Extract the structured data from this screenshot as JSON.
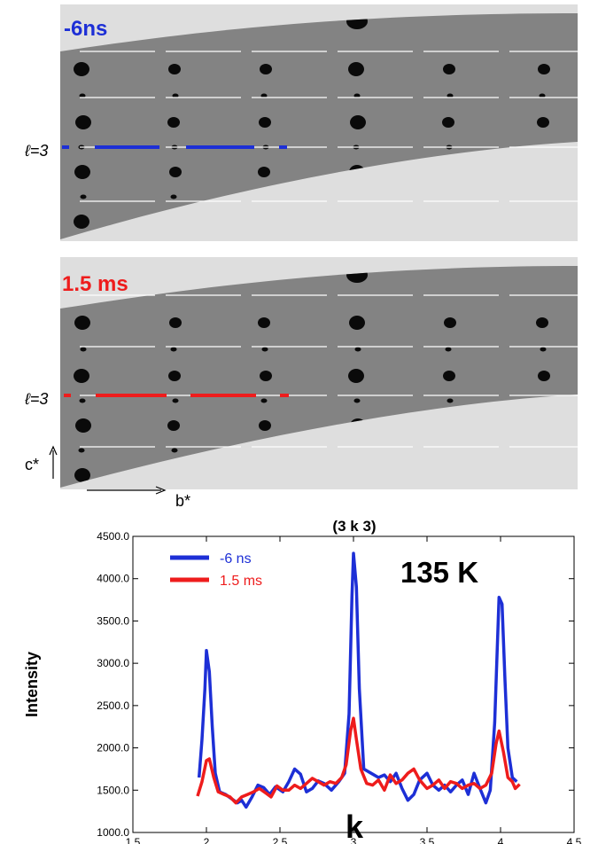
{
  "panels": [
    {
      "time_label": "-6ns",
      "l_label": "ℓ=3",
      "color": "#1d2fd6"
    },
    {
      "time_label": "1.5 ms",
      "l_label": "ℓ=3",
      "color": "#ee1c1c"
    }
  ],
  "axes_labels": {
    "c_star": "c*",
    "b_star": "b*"
  },
  "chart_data": {
    "type": "line",
    "title": "(3 k 3)",
    "annotation": "135 K",
    "xlabel": "k",
    "ylabel": "Intensity",
    "xlim": [
      1.5,
      4.5
    ],
    "ylim": [
      1000.0,
      4500.0
    ],
    "x_ticks": [
      "1.5",
      "2",
      "2.5",
      "3",
      "3.5",
      "4",
      "4.5"
    ],
    "y_ticks": [
      "1000.0",
      "1500.0",
      "2000.0",
      "2500.0",
      "3000.0",
      "3500.0",
      "4000.0",
      "4500.0"
    ],
    "legend_position": "top-left",
    "series": [
      {
        "name": "-6 ns",
        "color": "#1d2fd6",
        "points": [
          [
            1.95,
            1650
          ],
          [
            1.97,
            2100
          ],
          [
            1.99,
            2700
          ],
          [
            2.0,
            3150
          ],
          [
            2.02,
            2900
          ],
          [
            2.04,
            2250
          ],
          [
            2.06,
            1700
          ],
          [
            2.09,
            1480
          ],
          [
            2.13,
            1450
          ],
          [
            2.17,
            1400
          ],
          [
            2.21,
            1350
          ],
          [
            2.24,
            1380
          ],
          [
            2.27,
            1300
          ],
          [
            2.31,
            1420
          ],
          [
            2.35,
            1560
          ],
          [
            2.39,
            1530
          ],
          [
            2.43,
            1450
          ],
          [
            2.47,
            1540
          ],
          [
            2.52,
            1480
          ],
          [
            2.56,
            1600
          ],
          [
            2.6,
            1750
          ],
          [
            2.64,
            1690
          ],
          [
            2.68,
            1480
          ],
          [
            2.72,
            1520
          ],
          [
            2.76,
            1610
          ],
          [
            2.8,
            1580
          ],
          [
            2.85,
            1500
          ],
          [
            2.9,
            1600
          ],
          [
            2.94,
            1700
          ],
          [
            2.97,
            2400
          ],
          [
            2.99,
            3800
          ],
          [
            3.0,
            4300
          ],
          [
            3.02,
            3900
          ],
          [
            3.04,
            2700
          ],
          [
            3.07,
            1750
          ],
          [
            3.12,
            1700
          ],
          [
            3.17,
            1650
          ],
          [
            3.21,
            1680
          ],
          [
            3.25,
            1600
          ],
          [
            3.29,
            1700
          ],
          [
            3.33,
            1520
          ],
          [
            3.37,
            1380
          ],
          [
            3.41,
            1450
          ],
          [
            3.45,
            1620
          ],
          [
            3.5,
            1700
          ],
          [
            3.54,
            1560
          ],
          [
            3.58,
            1500
          ],
          [
            3.62,
            1560
          ],
          [
            3.66,
            1480
          ],
          [
            3.7,
            1560
          ],
          [
            3.74,
            1620
          ],
          [
            3.78,
            1450
          ],
          [
            3.82,
            1700
          ],
          [
            3.86,
            1520
          ],
          [
            3.9,
            1350
          ],
          [
            3.93,
            1500
          ],
          [
            3.96,
            2300
          ],
          [
            3.98,
            3300
          ],
          [
            3.99,
            3780
          ],
          [
            4.01,
            3700
          ],
          [
            4.03,
            2800
          ],
          [
            4.05,
            2000
          ],
          [
            4.08,
            1650
          ],
          [
            4.11,
            1600
          ]
        ]
      },
      {
        "name": "1.5 ms",
        "color": "#ee1c1c",
        "points": [
          [
            1.94,
            1430
          ],
          [
            1.97,
            1600
          ],
          [
            2.0,
            1850
          ],
          [
            2.02,
            1870
          ],
          [
            2.05,
            1650
          ],
          [
            2.08,
            1480
          ],
          [
            2.12,
            1450
          ],
          [
            2.16,
            1420
          ],
          [
            2.2,
            1350
          ],
          [
            2.24,
            1420
          ],
          [
            2.28,
            1450
          ],
          [
            2.32,
            1480
          ],
          [
            2.36,
            1520
          ],
          [
            2.4,
            1470
          ],
          [
            2.44,
            1420
          ],
          [
            2.48,
            1550
          ],
          [
            2.52,
            1500
          ],
          [
            2.56,
            1500
          ],
          [
            2.6,
            1560
          ],
          [
            2.64,
            1520
          ],
          [
            2.68,
            1580
          ],
          [
            2.72,
            1640
          ],
          [
            2.76,
            1600
          ],
          [
            2.8,
            1560
          ],
          [
            2.84,
            1600
          ],
          [
            2.88,
            1580
          ],
          [
            2.92,
            1650
          ],
          [
            2.95,
            1800
          ],
          [
            2.98,
            2200
          ],
          [
            3.0,
            2350
          ],
          [
            3.02,
            2100
          ],
          [
            3.05,
            1750
          ],
          [
            3.09,
            1580
          ],
          [
            3.13,
            1560
          ],
          [
            3.17,
            1620
          ],
          [
            3.21,
            1500
          ],
          [
            3.25,
            1680
          ],
          [
            3.29,
            1580
          ],
          [
            3.33,
            1620
          ],
          [
            3.37,
            1700
          ],
          [
            3.41,
            1750
          ],
          [
            3.45,
            1620
          ],
          [
            3.5,
            1520
          ],
          [
            3.54,
            1560
          ],
          [
            3.58,
            1620
          ],
          [
            3.62,
            1520
          ],
          [
            3.66,
            1600
          ],
          [
            3.7,
            1580
          ],
          [
            3.74,
            1520
          ],
          [
            3.78,
            1560
          ],
          [
            3.82,
            1580
          ],
          [
            3.86,
            1520
          ],
          [
            3.9,
            1560
          ],
          [
            3.94,
            1700
          ],
          [
            3.97,
            2050
          ],
          [
            3.99,
            2200
          ],
          [
            4.02,
            1950
          ],
          [
            4.05,
            1650
          ],
          [
            4.08,
            1600
          ],
          [
            4.1,
            1520
          ],
          [
            4.13,
            1570
          ]
        ]
      }
    ]
  }
}
